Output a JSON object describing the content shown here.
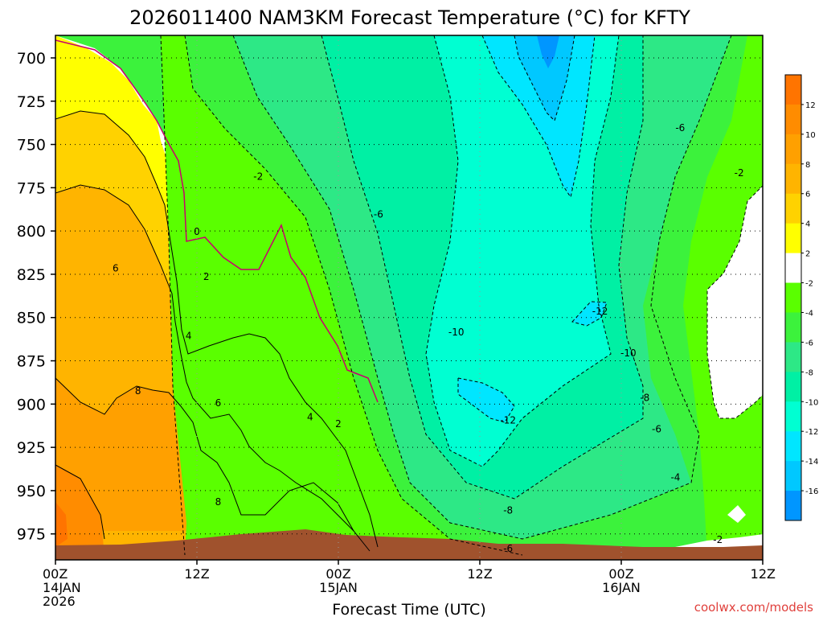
{
  "chart_data": {
    "type": "heatmap",
    "title": "2026011400 NAM3KM Forecast Temperature (°C) for KFTY",
    "xlabel": "Forecast Time (UTC)",
    "ylabel": "",
    "credit": "coolwx.com/models",
    "x_ticks": [
      {
        "hour": 0,
        "label": "00Z",
        "sub": [
          "14JAN",
          "2026"
        ]
      },
      {
        "hour": 12,
        "label": "12Z",
        "sub": []
      },
      {
        "hour": 24,
        "label": "00Z",
        "sub": [
          "15JAN"
        ]
      },
      {
        "hour": 36,
        "label": "12Z",
        "sub": []
      },
      {
        "hour": 48,
        "label": "00Z",
        "sub": [
          "16JAN"
        ]
      },
      {
        "hour": 60,
        "label": "12Z",
        "sub": []
      }
    ],
    "xlim": [
      0,
      60
    ],
    "y_ticks": [
      700,
      725,
      750,
      775,
      800,
      825,
      850,
      875,
      900,
      925,
      950,
      975
    ],
    "ylim": [
      687,
      990
    ],
    "y_unit": "hPa",
    "grid": true,
    "legend_position": "right",
    "colorbar": [
      {
        "label": "",
        "color": "#ff7400"
      },
      {
        "label": "12",
        "color": "#ff8c00"
      },
      {
        "label": "10",
        "color": "#ffa000"
      },
      {
        "label": "8",
        "color": "#ffb400"
      },
      {
        "label": "6",
        "color": "#ffd200"
      },
      {
        "label": "4",
        "color": "#ffff00"
      },
      {
        "label": "2",
        "color": "#ffffff"
      },
      {
        "label": "-2",
        "color": "#5aff00"
      },
      {
        "label": "-4",
        "color": "#3cf23c"
      },
      {
        "label": "-6",
        "color": "#2de886"
      },
      {
        "label": "-8",
        "color": "#00f0a4"
      },
      {
        "label": "-10",
        "color": "#00ffd2"
      },
      {
        "label": "-12",
        "color": "#00e6ff"
      },
      {
        "label": "-14",
        "color": "#00c8ff"
      },
      {
        "label": "-16",
        "color": "#0096ff"
      }
    ],
    "contour_labels": [
      {
        "text": "0",
        "hour": 12.0,
        "p": 800
      },
      {
        "text": "2",
        "hour": 12.8,
        "p": 826
      },
      {
        "text": "4",
        "hour": 11.3,
        "p": 860
      },
      {
        "text": "6",
        "hour": 5.1,
        "p": 821
      },
      {
        "text": "8",
        "hour": 7.0,
        "p": 892
      },
      {
        "text": "6",
        "hour": 13.8,
        "p": 899
      },
      {
        "text": "8",
        "hour": 13.8,
        "p": 956
      },
      {
        "text": "4",
        "hour": 21.6,
        "p": 907
      },
      {
        "text": "2",
        "hour": 24.0,
        "p": 911
      },
      {
        "text": "-2",
        "hour": 17.2,
        "p": 768
      },
      {
        "text": "-6",
        "hour": 27.4,
        "p": 790
      },
      {
        "text": "-10",
        "hour": 34.0,
        "p": 858
      },
      {
        "text": "-12",
        "hour": 46.2,
        "p": 846
      },
      {
        "text": "-10",
        "hour": 48.6,
        "p": 870
      },
      {
        "text": "-12",
        "hour": 38.4,
        "p": 909
      },
      {
        "text": "-8",
        "hour": 50.0,
        "p": 896
      },
      {
        "text": "-6",
        "hour": 51.0,
        "p": 914
      },
      {
        "text": "-4",
        "hour": 52.6,
        "p": 942
      },
      {
        "text": "-8",
        "hour": 38.4,
        "p": 961
      },
      {
        "text": "-6",
        "hour": 38.4,
        "p": 983
      },
      {
        "text": "-6",
        "hour": 53.0,
        "p": 740
      },
      {
        "text": "-2",
        "hour": 58.0,
        "p": 766
      },
      {
        "text": "-2",
        "hour": 56.2,
        "p": 978
      }
    ]
  }
}
